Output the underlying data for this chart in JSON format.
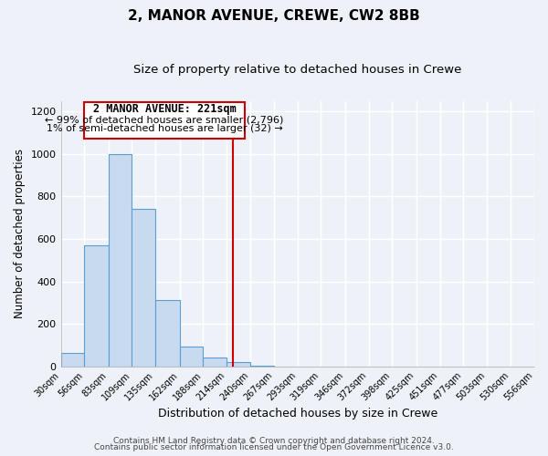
{
  "title": "2, MANOR AVENUE, CREWE, CW2 8BB",
  "subtitle": "Size of property relative to detached houses in Crewe",
  "xlabel": "Distribution of detached houses by size in Crewe",
  "ylabel": "Number of detached properties",
  "bin_edges": [
    30,
    56,
    83,
    109,
    135,
    162,
    188,
    214,
    240,
    267,
    293,
    319,
    346,
    372,
    398,
    425,
    451,
    477,
    503,
    530,
    556
  ],
  "bar_heights": [
    65,
    570,
    1000,
    740,
    310,
    95,
    40,
    20,
    5,
    0,
    0,
    0,
    0,
    0,
    0,
    0,
    0,
    0,
    0,
    0
  ],
  "bar_color": "#c8daf0",
  "bar_edge_color": "#5a9fd4",
  "property_line_x": 221,
  "property_line_color": "#cc0000",
  "annotation_box_color": "#cc0000",
  "annotation_title": "2 MANOR AVENUE: 221sqm",
  "annotation_line1": "← 99% of detached houses are smaller (2,796)",
  "annotation_line2": "1% of semi-detached houses are larger (32) →",
  "ylim": [
    0,
    1250
  ],
  "yticks": [
    0,
    200,
    400,
    600,
    800,
    1000,
    1200
  ],
  "footer1": "Contains HM Land Registry data © Crown copyright and database right 2024.",
  "footer2": "Contains public sector information licensed under the Open Government Licence v3.0.",
  "background_color": "#eef2f8",
  "plot_background_color": "#eef2f8",
  "grid_color": "#ffffff",
  "title_fontsize": 11,
  "subtitle_fontsize": 9.5,
  "annotation_fontsize": 8.5,
  "footer_fontsize": 6.5
}
